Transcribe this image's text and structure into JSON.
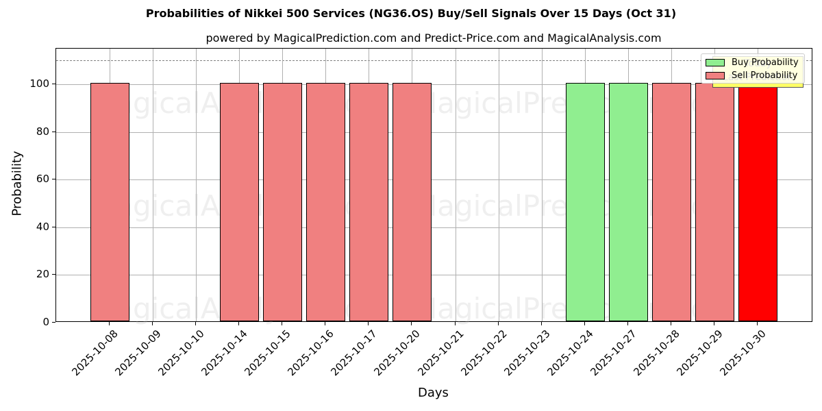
{
  "chart_data": {
    "type": "bar",
    "title": "Probabilities of Nikkei 500 Services (NG36.OS) Buy/Sell Signals Over 15 Days (Oct 31)",
    "subtitle": "powered by MagicalPrediction.com and Predict-Price.com and MagicalAnalysis.com",
    "xlabel": "Days",
    "ylabel": "Probability",
    "ylim": [
      0,
      115
    ],
    "yticks": [
      0,
      20,
      40,
      60,
      80,
      100
    ],
    "grid": true,
    "legend_position": "upper right",
    "reference_line": {
      "y": 110,
      "style": "dashed",
      "color": "#808080"
    },
    "categories": [
      "2025-10-08",
      "2025-10-09",
      "2025-10-10",
      "2025-10-14",
      "2025-10-15",
      "2025-10-16",
      "2025-10-17",
      "2025-10-20",
      "2025-10-21",
      "2025-10-22",
      "2025-10-23",
      "2025-10-24",
      "2025-10-27",
      "2025-10-28",
      "2025-10-29",
      "2025-10-30"
    ],
    "series": [
      {
        "name": "Buy Probability",
        "color": "#90ee90",
        "values": [
          0,
          0,
          0,
          0,
          0,
          0,
          0,
          0,
          0,
          0,
          0,
          100,
          100,
          0,
          0,
          0
        ]
      },
      {
        "name": "Sell Probability",
        "color": "#f08080",
        "values": [
          100,
          0,
          0,
          100,
          100,
          100,
          100,
          100,
          0,
          0,
          0,
          0,
          0,
          100,
          100,
          100
        ]
      }
    ],
    "highlight": {
      "category": "2025-10-30",
      "color": "#ff0000",
      "annotation": "Today / Last Prediction",
      "annotation_color": "#ffff66"
    },
    "watermarks": [
      "MagicalAnalysis.com",
      "MagicalPrediction.com"
    ]
  },
  "legend": {
    "buy": "Buy Probability",
    "sell": "Sell Probability"
  },
  "annotation": {
    "line1": "Today",
    "line2": "Last Prediction"
  }
}
